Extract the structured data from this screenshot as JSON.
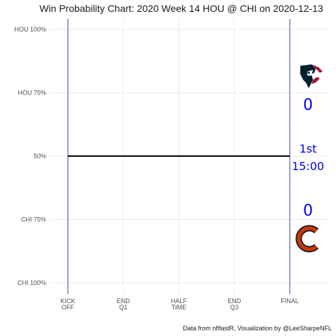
{
  "chart_data": {
    "type": "line",
    "title": "Win Probability Chart: 2020 Week 14 HOU @ CHI on 2020-12-13",
    "caption": "Data from nflfastR, Visualization by @LeeSharpeNFL",
    "xlabel": "",
    "ylabel": "",
    "x_ticks": [
      "KICK\nOFF",
      "END\nQ1",
      "HALF\nTIME",
      "END\nQ3",
      "FINAL"
    ],
    "y_ticks": [
      "HOU 100%",
      "HOU 75%",
      "50%",
      "CHI 75%",
      "CHI 100%"
    ],
    "y_tick_values": [
      1.0,
      0.75,
      0.5,
      0.25,
      0.0
    ],
    "x_range": [
      0,
      3600
    ],
    "y_range": [
      0,
      1
    ],
    "grid": true,
    "series": [
      {
        "x": [
          0,
          3600
        ],
        "values": [
          0.5,
          0.5
        ],
        "color": "#000000"
      }
    ],
    "vertical_lines_x": [
      0,
      3600
    ],
    "vertical_line_color": "#2c2c7a",
    "annotations": {
      "home_team_icon": "houston-texans-logo",
      "away_team_icon": "chicago-bears-logo",
      "hou_score": "0",
      "chi_score": "0",
      "quarter": "1st",
      "clock": "15:00",
      "color": "#0000ee"
    }
  }
}
